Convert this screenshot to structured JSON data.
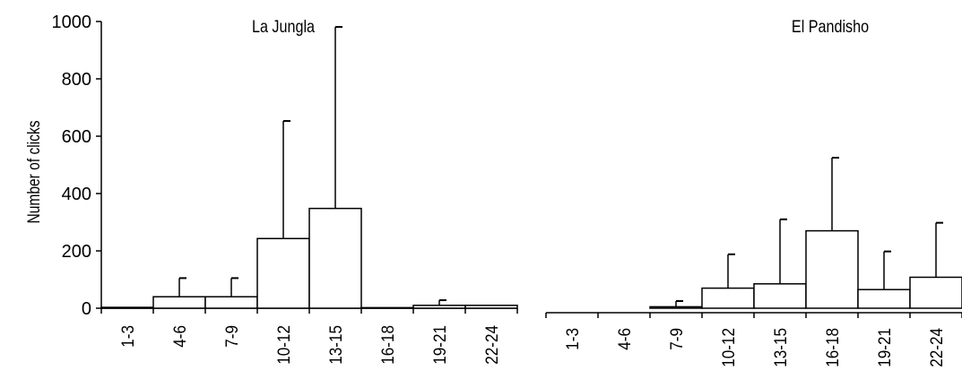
{
  "chart_data": [
    {
      "type": "bar",
      "title": "La Jungla",
      "ylabel": "Number of clicks",
      "ylim": [
        0,
        1000
      ],
      "yticks": [
        "0",
        "200",
        "400",
        "600",
        "800",
        "1000"
      ],
      "categories": [
        "1-3",
        "4-6",
        "7-9",
        "10-12",
        "13-15",
        "16-18",
        "19-21",
        "22-24"
      ],
      "values": [
        3,
        40,
        40,
        243,
        348,
        2,
        10,
        10
      ],
      "errors": [
        0,
        65,
        65,
        410,
        633,
        0,
        18,
        0
      ],
      "grid": false
    },
    {
      "type": "bar",
      "title": "El Pandisho",
      "ylim": [
        0,
        1000
      ],
      "categories": [
        "1-3",
        "4-6",
        "7-9",
        "10-12",
        "13-15",
        "16-18",
        "19-21",
        "22-24"
      ],
      "values": [
        0,
        0,
        5,
        70,
        85,
        270,
        65,
        108
      ],
      "errors": [
        0,
        0,
        20,
        118,
        225,
        255,
        133,
        190
      ],
      "grid": false
    }
  ]
}
